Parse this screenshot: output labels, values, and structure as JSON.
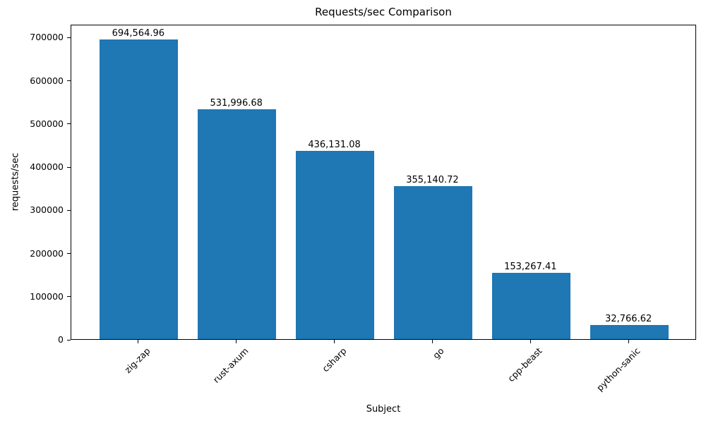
{
  "chart_data": {
    "type": "bar",
    "title": "Requests/sec Comparison",
    "xlabel": "Subject",
    "ylabel": "requests/sec",
    "categories": [
      "zig-zap",
      "rust-axum",
      "csharp",
      "go",
      "cpp-beast",
      "python-sanic"
    ],
    "values": [
      694564.96,
      531996.68,
      436131.08,
      355140.72,
      153267.41,
      32766.62
    ],
    "value_labels": [
      "694,564.96",
      "531,996.68",
      "436,131.08",
      "355,140.72",
      "153,267.41",
      "32,766.62"
    ],
    "ylim": [
      0,
      730000
    ],
    "yticks": [
      0,
      100000,
      200000,
      300000,
      400000,
      500000,
      600000,
      700000
    ],
    "bar_color": "#1f77b4",
    "grid": false,
    "legend_position": "none",
    "xtick_rotation_deg": 45
  }
}
